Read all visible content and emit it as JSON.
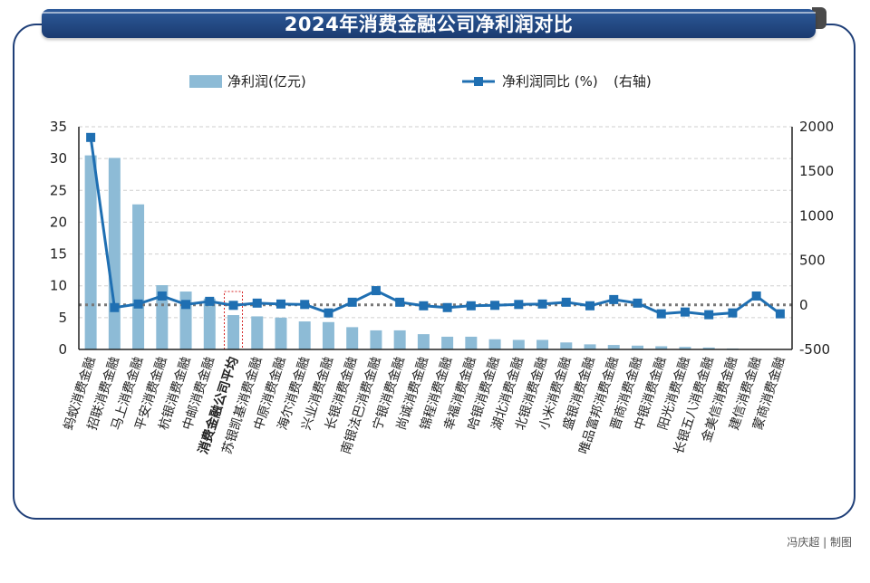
{
  "header": {
    "title": "2024年消费金融公司净利润对比"
  },
  "footer": {
    "credit": "冯庆超 | 制图"
  },
  "colors": {
    "bar": "#8dbbd6",
    "line": "#1f6fb2",
    "highlight": "#d62828",
    "avg_line": "#777777"
  },
  "chart_data": {
    "type": "bar",
    "title": "2024年消费金融公司净利润对比",
    "categories": [
      "蚂蚁消费金融",
      "招联消费金融",
      "马上消费金融",
      "平安消费金融",
      "杭银消费金融",
      "中邮消费金融",
      "消费金融公司平均",
      "苏银凯基消费金融",
      "中原消费金融",
      "海尔消费金融",
      "兴业消费金融",
      "长银消费金融",
      "南银法巴消费金融",
      "宁银消费金融",
      "尚诚消费金融",
      "锦程消费金融",
      "幸福消费金融",
      "哈银消费金融",
      "湖北消费金融",
      "北银消费金融",
      "小米消费金融",
      "盛银消费金融",
      "唯品富邦消费金融",
      "晋商消费金融",
      "中银消费金融",
      "阳光消费金融",
      "长银五八消费金融",
      "金美信消费金融",
      "建信消费金融",
      "蒙商消费金融"
    ],
    "highlight_category": "消费金融公司平均",
    "y_left": {
      "min": 0,
      "max": 35,
      "ticks": [
        0,
        5,
        10,
        15,
        20,
        25,
        30,
        35
      ]
    },
    "y_right": {
      "min": -500,
      "max": 2000,
      "ticks": [
        -500,
        0,
        500,
        1000,
        1500,
        2000
      ]
    },
    "grid": true,
    "legend_position": "top",
    "reference_line_left": 7,
    "series": [
      {
        "name": "净利润(亿元)",
        "type": "bar",
        "axis": "left",
        "values": [
          30.5,
          30.1,
          22.8,
          10.1,
          9.1,
          8.0,
          5.4,
          5.2,
          5.0,
          4.4,
          4.3,
          3.5,
          3.0,
          3.0,
          2.4,
          2.0,
          2.0,
          1.6,
          1.5,
          1.5,
          1.1,
          0.8,
          0.7,
          0.6,
          0.5,
          0.4,
          0.3,
          0.15,
          0.08,
          0.05
        ]
      },
      {
        "name": "净利润同比 (%)",
        "axis_note": "(右轴)",
        "type": "line",
        "axis": "right",
        "values": [
          1880,
          -30,
          10,
          100,
          5,
          40,
          -5,
          20,
          10,
          5,
          -90,
          30,
          160,
          30,
          -10,
          -30,
          -10,
          -5,
          5,
          10,
          30,
          -10,
          60,
          20,
          -100,
          -80,
          -110,
          -90,
          100,
          -100
        ]
      }
    ]
  }
}
